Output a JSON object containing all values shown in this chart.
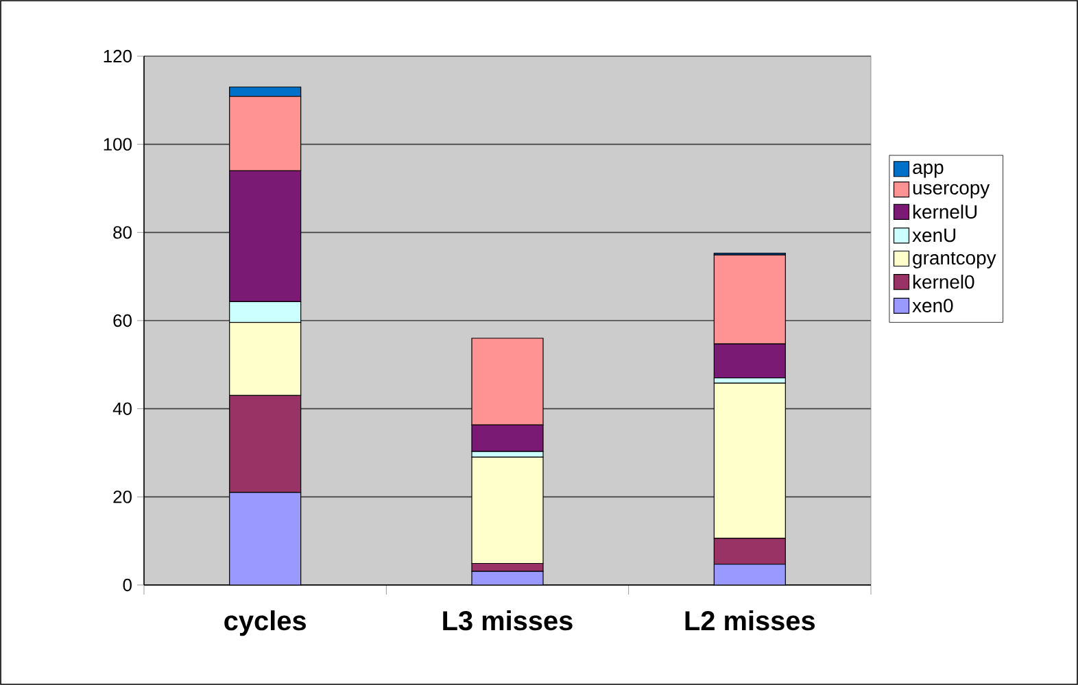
{
  "chart_data": {
    "type": "bar",
    "stacked": true,
    "categories": [
      "cycles",
      "L3 misses",
      "L2 misses"
    ],
    "series": [
      {
        "name": "xen0",
        "color": "#9999ff",
        "values": [
          21,
          3.1,
          4.7
        ]
      },
      {
        "name": "kernel0",
        "color": "#993366",
        "values": [
          22,
          1.8,
          5.9
        ]
      },
      {
        "name": "grantcopy",
        "color": "#ffffcc",
        "values": [
          16.6,
          24.1,
          35.2
        ]
      },
      {
        "name": "xenU",
        "color": "#ccffff",
        "values": [
          4.7,
          1.3,
          1.2
        ]
      },
      {
        "name": "kernelU",
        "color": "#7a1a74",
        "values": [
          29.7,
          6,
          7.7
        ]
      },
      {
        "name": "usercopy",
        "color": "#ff9393",
        "values": [
          16.9,
          19.7,
          20.2
        ]
      },
      {
        "name": "app",
        "color": "#0070c8",
        "values": [
          2.1,
          0,
          0.4
        ]
      }
    ],
    "ylim": [
      0,
      120
    ],
    "yticks": [
      0,
      20,
      40,
      60,
      80,
      100,
      120
    ],
    "grid": "y",
    "legend": "right"
  }
}
